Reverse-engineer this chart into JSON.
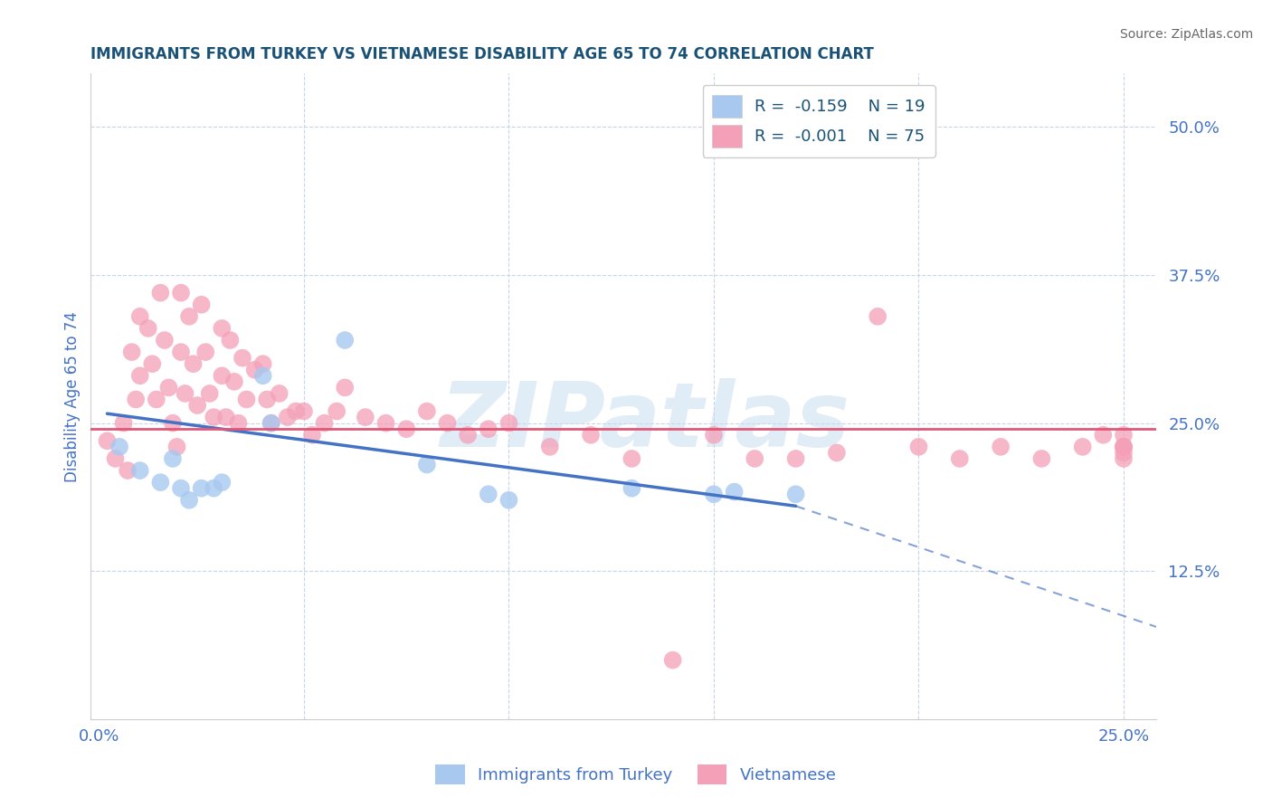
{
  "title": "IMMIGRANTS FROM TURKEY VS VIETNAMESE DISABILITY AGE 65 TO 74 CORRELATION CHART",
  "source_text": "Source: ZipAtlas.com",
  "ylabel": "Disability Age 65 to 74",
  "xlim": [
    -0.002,
    0.258
  ],
  "ylim": [
    0.0,
    0.545
  ],
  "ytick_positions": [
    0.125,
    0.25,
    0.375,
    0.5
  ],
  "ytick_labels": [
    "12.5%",
    "25.0%",
    "37.5%",
    "50.0%"
  ],
  "xtick_positions": [
    0.0,
    0.05,
    0.1,
    0.15,
    0.2,
    0.25
  ],
  "xticklabels": [
    "0.0%",
    "",
    "",
    "",
    "",
    "25.0%"
  ],
  "turkey_color": "#a8c8f0",
  "vietnamese_color": "#f4a0b8",
  "turkey_line_color": "#4472c4",
  "vietnamese_line_color": "#e05878",
  "turkey_R": -0.159,
  "turkey_N": 19,
  "vietnamese_R": -0.001,
  "vietnamese_N": 75,
  "watermark": "ZIPatlas",
  "watermark_color": "#c8ddf0",
  "legend_label_turkey": "Immigrants from Turkey",
  "legend_label_vietnamese": "Vietnamese",
  "background_color": "#ffffff",
  "grid_color": "#c8d4e8",
  "title_color": "#1a5276",
  "axis_label_color": "#4472c4",
  "tick_color": "#4472c4",
  "source_color": "#888888",
  "turkey_x": [
    0.005,
    0.01,
    0.015,
    0.018,
    0.02,
    0.022,
    0.025,
    0.028,
    0.03,
    0.04,
    0.042,
    0.06,
    0.08,
    0.095,
    0.1,
    0.13,
    0.15,
    0.155,
    0.17
  ],
  "turkey_y": [
    0.23,
    0.21,
    0.2,
    0.22,
    0.195,
    0.185,
    0.195,
    0.195,
    0.2,
    0.29,
    0.25,
    0.32,
    0.215,
    0.19,
    0.185,
    0.195,
    0.19,
    0.192,
    0.19
  ],
  "vietnamese_x": [
    0.002,
    0.004,
    0.006,
    0.007,
    0.008,
    0.009,
    0.01,
    0.01,
    0.012,
    0.013,
    0.014,
    0.015,
    0.016,
    0.017,
    0.018,
    0.019,
    0.02,
    0.02,
    0.021,
    0.022,
    0.023,
    0.024,
    0.025,
    0.026,
    0.027,
    0.028,
    0.03,
    0.03,
    0.031,
    0.032,
    0.033,
    0.034,
    0.035,
    0.036,
    0.038,
    0.04,
    0.041,
    0.042,
    0.044,
    0.046,
    0.048,
    0.05,
    0.052,
    0.055,
    0.058,
    0.06,
    0.065,
    0.07,
    0.075,
    0.08,
    0.085,
    0.09,
    0.095,
    0.1,
    0.11,
    0.12,
    0.13,
    0.14,
    0.15,
    0.16,
    0.17,
    0.18,
    0.19,
    0.2,
    0.21,
    0.22,
    0.23,
    0.24,
    0.245,
    0.25,
    0.25,
    0.25,
    0.25,
    0.25,
    0.25
  ],
  "vietnamese_y": [
    0.235,
    0.22,
    0.25,
    0.21,
    0.31,
    0.27,
    0.34,
    0.29,
    0.33,
    0.3,
    0.27,
    0.36,
    0.32,
    0.28,
    0.25,
    0.23,
    0.36,
    0.31,
    0.275,
    0.34,
    0.3,
    0.265,
    0.35,
    0.31,
    0.275,
    0.255,
    0.33,
    0.29,
    0.255,
    0.32,
    0.285,
    0.25,
    0.305,
    0.27,
    0.295,
    0.3,
    0.27,
    0.25,
    0.275,
    0.255,
    0.26,
    0.26,
    0.24,
    0.25,
    0.26,
    0.28,
    0.255,
    0.25,
    0.245,
    0.26,
    0.25,
    0.24,
    0.245,
    0.25,
    0.23,
    0.24,
    0.22,
    0.05,
    0.24,
    0.22,
    0.22,
    0.225,
    0.34,
    0.23,
    0.22,
    0.23,
    0.22,
    0.23,
    0.24,
    0.23,
    0.23,
    0.24,
    0.22,
    0.23,
    0.225
  ],
  "turkey_line_x0": 0.002,
  "turkey_line_y0": 0.258,
  "turkey_line_x1": 0.17,
  "turkey_line_y1": 0.18,
  "turkey_line_ext_x1": 0.258,
  "turkey_line_ext_y1": 0.078,
  "viet_line_y": 0.245
}
